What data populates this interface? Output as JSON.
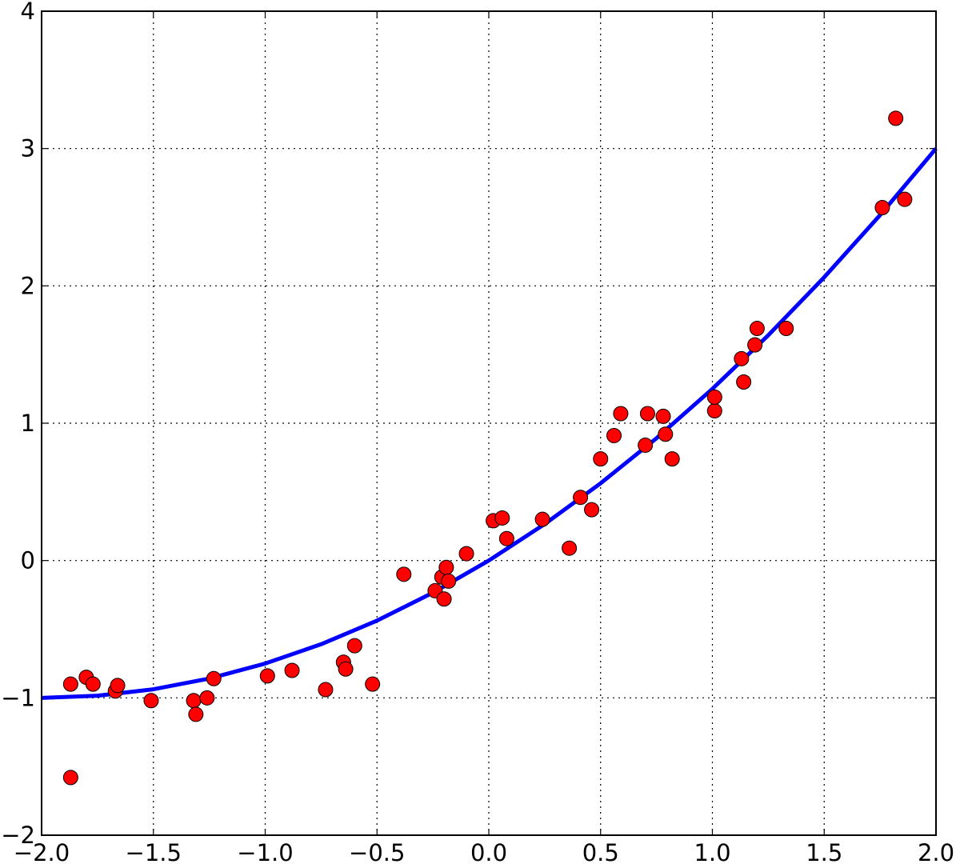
{
  "chart_data": {
    "type": "scatter",
    "xlim": [
      -2,
      2
    ],
    "ylim": [
      -2,
      4
    ],
    "xticks": [
      {
        "value": -2,
        "label": "−2.0"
      },
      {
        "value": -1.5,
        "label": "−1.5"
      },
      {
        "value": -1,
        "label": "−1.0"
      },
      {
        "value": -0.5,
        "label": "−0.5"
      },
      {
        "value": 0,
        "label": "0.0"
      },
      {
        "value": 0.5,
        "label": "0.5"
      },
      {
        "value": 1,
        "label": "1.0"
      },
      {
        "value": 1.5,
        "label": "1.5"
      },
      {
        "value": 2,
        "label": "2.0"
      }
    ],
    "yticks": [
      {
        "value": -2,
        "label": "−2"
      },
      {
        "value": -1,
        "label": "−1"
      },
      0,
      1,
      2,
      3,
      4
    ],
    "grid": true,
    "points": {
      "color": "#ff0000",
      "x": [
        -1.87,
        -1.87,
        -1.8,
        -1.77,
        -1.67,
        -1.66,
        -1.51,
        -1.32,
        -1.31,
        -1.26,
        -1.23,
        -0.99,
        -0.88,
        -0.73,
        -0.65,
        -0.64,
        -0.6,
        -0.52,
        -0.38,
        -0.24,
        -0.21,
        -0.2,
        -0.19,
        -0.18,
        -0.1,
        0.02,
        0.06,
        0.08,
        0.24,
        0.36,
        0.41,
        0.46,
        0.5,
        0.56,
        0.59,
        0.7,
        0.71,
        0.78,
        0.79,
        0.82,
        1.01,
        1.01,
        1.13,
        1.14,
        1.19,
        1.2,
        1.33,
        1.76,
        1.82,
        1.86
      ],
      "y": [
        -0.9,
        -1.58,
        -0.85,
        -0.9,
        -0.95,
        -0.91,
        -1.02,
        -1.02,
        -1.12,
        -1.0,
        -0.86,
        -0.84,
        -0.8,
        -0.94,
        -0.74,
        -0.79,
        -0.62,
        -0.9,
        -0.1,
        -0.22,
        -0.12,
        -0.28,
        -0.05,
        -0.15,
        0.05,
        0.29,
        0.31,
        0.16,
        0.3,
        0.09,
        0.46,
        0.37,
        0.74,
        0.91,
        1.07,
        0.84,
        1.07,
        1.05,
        0.92,
        0.74,
        1.09,
        1.19,
        1.47,
        1.3,
        1.57,
        1.69,
        1.69,
        2.57,
        3.22,
        2.63
      ]
    },
    "curve": {
      "color": "#0000ff",
      "x": [
        -2,
        -1.75,
        -1.5,
        -1.25,
        -1,
        -0.75,
        -0.5,
        -0.25,
        0,
        0.25,
        0.5,
        0.75,
        1,
        1.25,
        1.5,
        1.75,
        2
      ],
      "y": [
        -1,
        -0.984375,
        -0.9375,
        -0.859375,
        -0.75,
        -0.609375,
        -0.4375,
        -0.234375,
        0,
        0.265625,
        0.5625,
        0.890625,
        1.25,
        1.640625,
        2.0625,
        2.515625,
        3
      ]
    }
  }
}
